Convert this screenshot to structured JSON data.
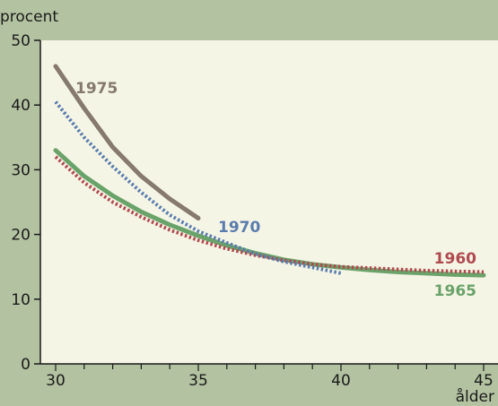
{
  "chart_data": {
    "type": "line",
    "title": "",
    "ylabel": "procent",
    "xlabel": "ålder",
    "xlim": [
      30,
      45
    ],
    "ylim": [
      0,
      50
    ],
    "xticks": [
      30,
      35,
      40,
      45
    ],
    "yticks": [
      0,
      10,
      20,
      30,
      40,
      50
    ],
    "grid": false,
    "colors": {
      "background": "#b3c2a0",
      "plot_area": "#f5f5e6",
      "axis": "#1a1a1a"
    },
    "series": [
      {
        "name": "1975",
        "color": "#857a6c",
        "style": "solid",
        "x": [
          30,
          31,
          32,
          33,
          34,
          35
        ],
        "y": [
          46,
          39.5,
          33.5,
          29,
          25.5,
          22.5
        ]
      },
      {
        "name": "1970",
        "color": "#5a7cad",
        "style": "dotted",
        "x": [
          30,
          31,
          32,
          33,
          34,
          35,
          36,
          37,
          38,
          39,
          40
        ],
        "y": [
          40.5,
          35,
          30.5,
          26.5,
          23,
          20.5,
          18.7,
          17,
          15.8,
          14.9,
          14
        ]
      },
      {
        "name": "1965",
        "color": "#6aa36a",
        "style": "solid",
        "x": [
          30,
          31,
          32,
          33,
          34,
          35,
          36,
          37,
          38,
          39,
          40,
          41,
          42,
          43,
          44,
          45
        ],
        "y": [
          33,
          29,
          26,
          23.5,
          21.5,
          19.8,
          18.3,
          17.1,
          16.1,
          15.4,
          14.9,
          14.5,
          14.2,
          14,
          13.8,
          13.7
        ]
      },
      {
        "name": "1960",
        "color": "#b04a4f",
        "style": "dotted",
        "x": [
          30,
          31,
          32,
          33,
          34,
          35,
          36,
          37,
          38,
          39,
          40,
          41,
          42,
          43,
          44,
          45
        ],
        "y": [
          32,
          28,
          25,
          22.7,
          20.7,
          19.1,
          17.8,
          16.8,
          16,
          15.4,
          15,
          14.8,
          14.6,
          14.4,
          14.3,
          14.2
        ]
      }
    ]
  }
}
